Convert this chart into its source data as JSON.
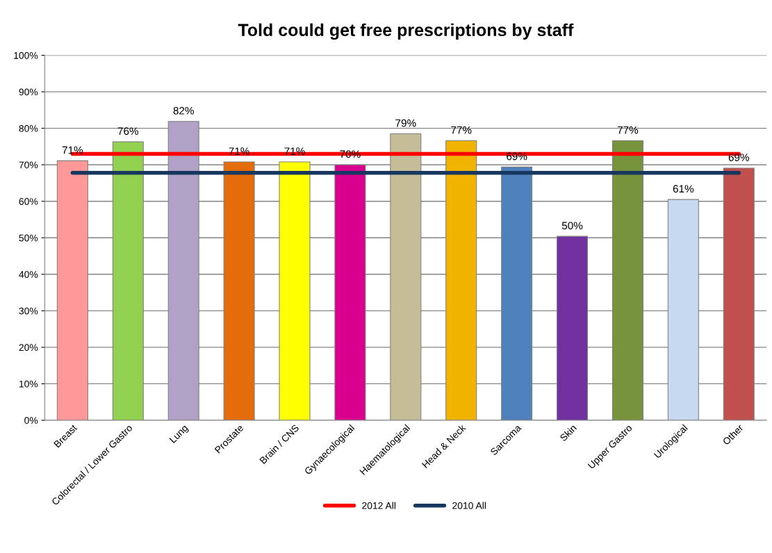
{
  "chart_data": {
    "type": "bar",
    "title": "Told could get free prescriptions by staff",
    "categories": [
      "Breast",
      "Colorectal / Lower Gastro",
      "Lung",
      "Prostate",
      "Brain / CNS",
      "Gynaecological",
      "Haematological",
      "Head & Neck",
      "Sarcoma",
      "Skin",
      "Upper Gastro",
      "Urological",
      "Other"
    ],
    "series": [
      {
        "values": [
          71.1,
          76.3,
          81.9,
          70.8,
          70.8,
          70.0,
          78.5,
          76.6,
          69.4,
          50.4,
          76.6,
          60.5,
          69.1
        ],
        "colors": [
          "#ff9999",
          "#92d050",
          "#b2a1c7",
          "#e46c0a",
          "#ffff00",
          "#d9008f",
          "#c4bd97",
          "#f0b400",
          "#4f81bd",
          "#7030a0",
          "#77933c",
          "#c6d9f1",
          "#c0504d"
        ],
        "value_labels": [
          "71%",
          "76%",
          "82%",
          "71%",
          "71%",
          "70%",
          "79%",
          "77%",
          "69%",
          "50%",
          "77%",
          "61%",
          "69%"
        ]
      },
      {
        "type": "line",
        "name": "2012 All",
        "color": "#ff0000",
        "values": [
          73.0,
          73.0,
          73.0,
          73.0,
          73.0,
          73.0,
          73.0,
          73.0,
          73.0,
          73.0,
          73.0,
          73.0,
          73.0
        ]
      },
      {
        "type": "line",
        "name": "2010 All",
        "color": "#17375e",
        "values": [
          67.8,
          67.8,
          67.8,
          67.8,
          67.8,
          67.8,
          67.8,
          67.8,
          67.8,
          67.8,
          67.8,
          67.8,
          67.8
        ]
      }
    ],
    "ylim": [
      0,
      100
    ],
    "yticks": [
      {
        "value": 0,
        "label": "0%"
      },
      {
        "value": 10,
        "label": "10%"
      },
      {
        "value": 20,
        "label": "20%"
      },
      {
        "value": 30,
        "label": "30%"
      },
      {
        "value": 40,
        "label": "40%"
      },
      {
        "value": 50,
        "label": "50%"
      },
      {
        "value": 60,
        "label": "60%"
      },
      {
        "value": 70,
        "label": "70%"
      },
      {
        "value": 80,
        "label": "80%"
      },
      {
        "value": 90,
        "label": "90%"
      },
      {
        "value": 100,
        "label": "100%"
      }
    ],
    "grid": "y",
    "legend": "bottom",
    "marker": "none",
    "line_style": "solid"
  }
}
